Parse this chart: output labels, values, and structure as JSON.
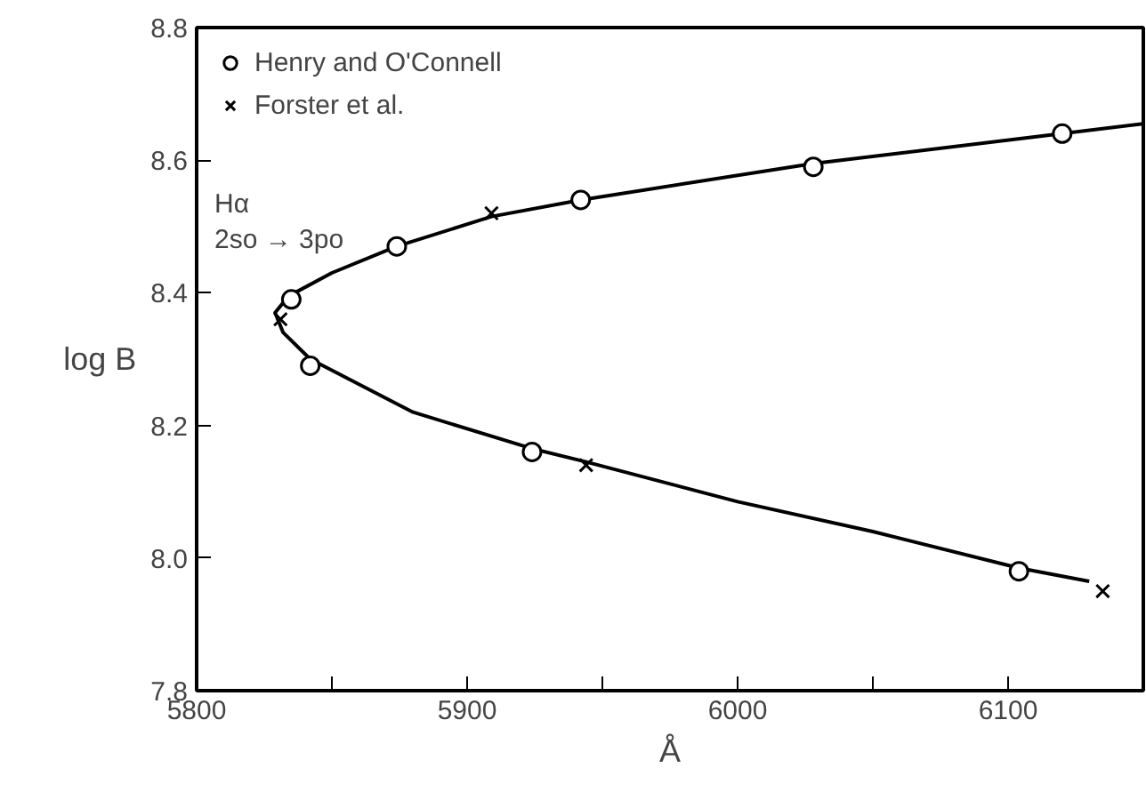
{
  "chart_data": {
    "type": "scatter",
    "xlabel": "Å",
    "ylabel": "log B",
    "annotations": [
      "Hα",
      "2so → 3po"
    ],
    "xlim": [
      5800,
      6150
    ],
    "xticks": [
      5800,
      {
        "value": 5850,
        "label": null
      },
      5900,
      {
        "value": 5950,
        "label": null
      },
      6000,
      {
        "value": 6050,
        "label": null
      },
      6100
    ],
    "ylim": [
      7.8,
      8.8
    ],
    "yticks": [
      7.8,
      {
        "value": 8,
        "label": "8.0"
      },
      8.2,
      8.4,
      8.6,
      8.8
    ],
    "grid": false,
    "legend": "top left",
    "series": [
      {
        "type": "line",
        "color": "#000000",
        "line_style": "solid",
        "marker": "none",
        "x": [
          6130,
          6104,
          6050,
          6000,
          5944,
          5924,
          5880,
          5842,
          5832,
          5829,
          5834,
          5850,
          5874,
          5909,
          5942,
          6028,
          6120,
          6150
        ],
        "values": [
          7.965,
          7.985,
          8.04,
          8.085,
          8.145,
          8.165,
          8.22,
          8.3,
          8.34,
          8.37,
          8.395,
          8.43,
          8.47,
          8.515,
          8.54,
          8.595,
          8.64,
          8.655
        ]
      },
      {
        "name": "Henry and O'Connell",
        "color": "#000000",
        "marker": "circle",
        "x": [
          5835,
          5842,
          5874,
          5924,
          5942,
          6028,
          6104,
          6120
        ],
        "values": [
          8.39,
          8.29,
          8.47,
          8.16,
          8.54,
          8.59,
          7.98,
          8.64
        ]
      },
      {
        "name": "Forster et al.",
        "color": "#000000",
        "marker": "cross",
        "x": [
          5831,
          5909,
          5944,
          6135
        ],
        "values": [
          8.36,
          8.52,
          8.14,
          7.95
        ]
      }
    ]
  }
}
